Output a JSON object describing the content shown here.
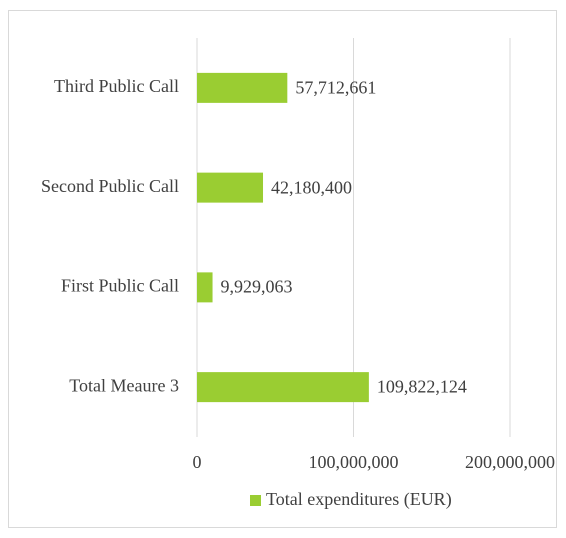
{
  "chart_data": {
    "type": "bar",
    "orientation": "horizontal",
    "categories": [
      "Third Public Call",
      "Second Public Call",
      "First Public Call",
      "Total Meaure 3"
    ],
    "series": [
      {
        "name": "Total expenditures (EUR)",
        "color": "#9acd32",
        "values": [
          57712661,
          42180400,
          9929063,
          109822124
        ],
        "value_labels": [
          "57,712,661",
          "42,180,400",
          "9,929,063",
          "109,822,124"
        ]
      }
    ],
    "xlim": [
      0,
      200000000
    ],
    "xticks": [
      0,
      {
        "value": 100000000,
        "label": "100,000,000"
      },
      {
        "value": 200000000,
        "label": "200,000,000"
      }
    ],
    "grid": true,
    "legend": "bottom"
  }
}
